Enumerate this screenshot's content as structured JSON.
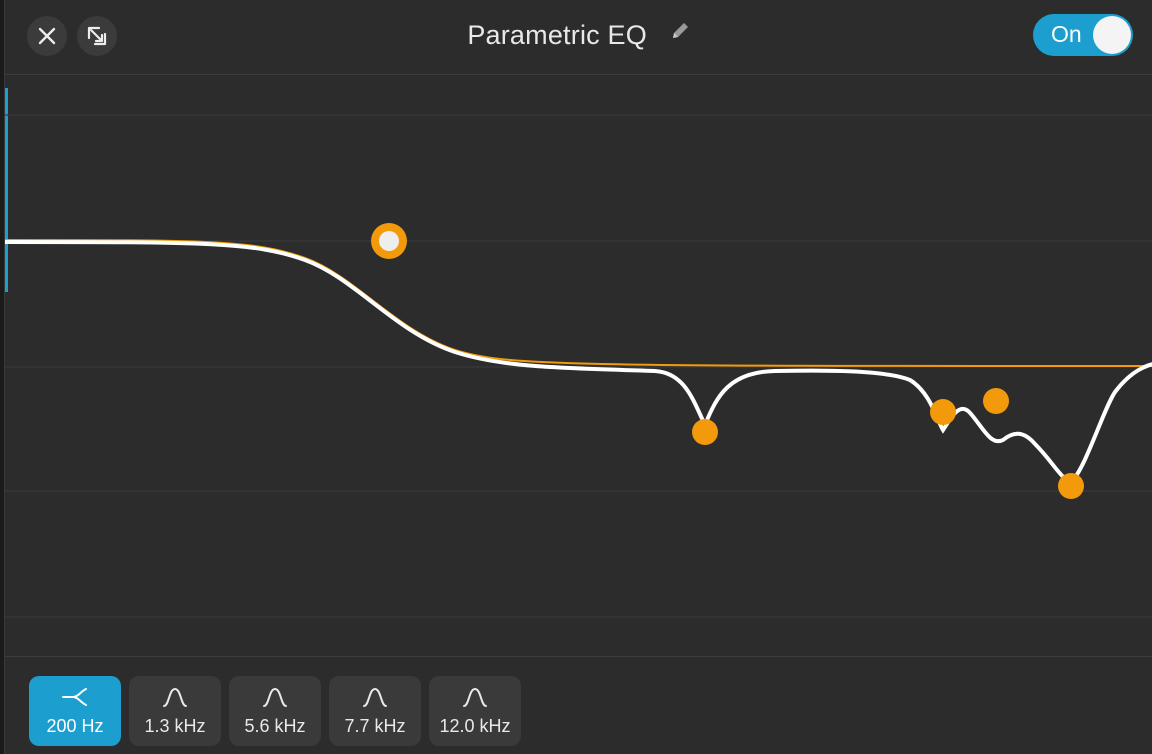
{
  "header": {
    "title": "Parametric EQ",
    "close_icon": "close-icon",
    "popout_icon": "popout-arrow-icon",
    "edit_icon": "pencil-icon",
    "toggle_label": "On",
    "toggle_on": true
  },
  "graph": {
    "curve_color": "#ffffff",
    "reference_color": "#f29a0c",
    "handle_color": "#f29a0c",
    "selected_band_index": 0
  },
  "bands": [
    {
      "label": "200 Hz",
      "icon": "high-cut-filter-icon",
      "active": true
    },
    {
      "label": "1.3 kHz",
      "icon": "bell-filter-icon",
      "active": false
    },
    {
      "label": "5.6 kHz",
      "icon": "bell-filter-icon",
      "active": false
    },
    {
      "label": "7.7 kHz",
      "icon": "bell-filter-icon",
      "active": false
    },
    {
      "label": "12.0 kHz",
      "icon": "bell-filter-icon",
      "active": false
    }
  ],
  "colors": {
    "accent": "#1c9fcf",
    "background": "#2c2c2c",
    "handle": "#f29a0c"
  }
}
